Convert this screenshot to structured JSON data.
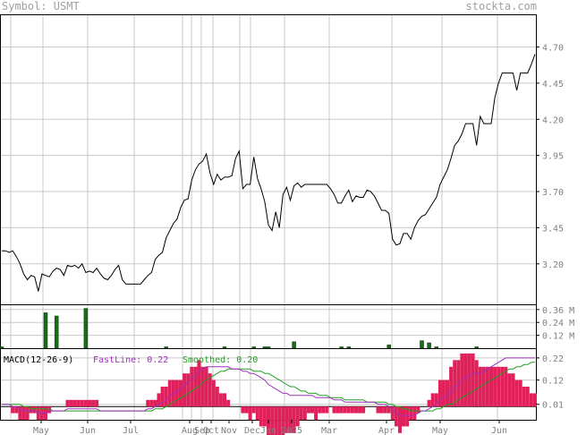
{
  "header": {
    "symbol_label": "Symbol: USMT",
    "site": "stockta.com"
  },
  "colors": {
    "price_line": "#000000",
    "volume_bar": "#1a6b1a",
    "hist_pos": "#e0205a",
    "hist_neg": "#e0205a",
    "fast_line": "#a030c0",
    "smoothed_line": "#20a020",
    "grid": "#c8c8c8"
  },
  "chart_data": [
    {
      "type": "line",
      "panel": "price",
      "y_ticks": [
        "4.70",
        "4.45",
        "4.20",
        "3.95",
        "3.70",
        "3.45",
        "3.20"
      ],
      "ylim": [
        2.92,
        4.92
      ],
      "x_ticks": [
        "May",
        "Jun",
        "Jul",
        "Aug",
        "Sep",
        "Oct",
        "Nov",
        "Dec",
        "Jan",
        "2025",
        "Mar",
        "Apr",
        "May",
        "Jun"
      ],
      "series": [
        {
          "values": [
            3.29,
            3.29,
            3.28,
            3.29,
            3.25,
            3.2,
            3.13,
            3.09,
            3.12,
            3.11,
            3.01,
            3.13,
            3.12,
            3.11,
            3.15,
            3.17,
            3.16,
            3.12,
            3.19,
            3.18,
            3.19,
            3.17,
            3.2,
            3.14,
            3.15,
            3.14,
            3.17,
            3.13,
            3.1,
            3.09,
            3.12,
            3.16,
            3.19,
            3.09,
            3.06,
            3.06,
            3.06,
            3.06,
            3.06,
            3.09,
            3.12,
            3.14,
            3.23,
            3.26,
            3.28,
            3.38,
            3.43,
            3.48,
            3.51,
            3.59,
            3.64,
            3.65,
            3.78,
            3.85,
            3.89,
            3.91,
            3.96,
            3.83,
            3.75,
            3.82,
            3.78,
            3.8,
            3.8,
            3.81,
            3.93,
            3.98,
            3.72,
            3.75,
            3.75,
            3.94,
            3.79,
            3.72,
            3.63,
            3.47,
            3.43,
            3.56,
            3.45,
            3.68,
            3.73,
            3.64,
            3.74,
            3.76,
            3.73,
            3.75,
            3.75,
            3.75,
            3.75,
            3.75,
            3.75,
            3.75,
            3.72,
            3.68,
            3.62,
            3.62,
            3.67,
            3.71,
            3.63,
            3.67,
            3.66,
            3.66,
            3.71,
            3.7,
            3.67,
            3.62,
            3.57,
            3.57,
            3.55,
            3.37,
            3.33,
            3.34,
            3.41,
            3.41,
            3.37,
            3.45,
            3.5,
            3.53,
            3.54,
            3.58,
            3.62,
            3.66,
            3.75,
            3.8,
            3.85,
            3.93,
            4.02,
            4.05,
            4.1,
            4.17,
            4.17,
            4.17,
            4.02,
            4.22,
            4.17,
            4.17,
            4.17,
            4.35,
            4.45,
            4.52,
            4.52,
            4.52,
            4.52,
            4.4,
            4.52,
            4.52,
            4.52,
            4.58,
            4.65
          ]
        }
      ]
    },
    {
      "type": "bar",
      "panel": "volume",
      "y_ticks": [
        "0.36 M",
        "0.24 M",
        "0.12 M"
      ],
      "ylim": [
        0,
        0.4
      ],
      "values": [
        0.01,
        0,
        0,
        0,
        0,
        0,
        0,
        0,
        0,
        0,
        0,
        0,
        0.33,
        0,
        0,
        0.3,
        0,
        0,
        0,
        0,
        0,
        0,
        0,
        0.37,
        0,
        0,
        0,
        0,
        0,
        0,
        0,
        0,
        0,
        0,
        0,
        0,
        0,
        0,
        0,
        0,
        0,
        0,
        0,
        0,
        0,
        0.01,
        0,
        0,
        0,
        0,
        0,
        0,
        0,
        0,
        0,
        0,
        0,
        0,
        0,
        0,
        0,
        0.01,
        0,
        0,
        0,
        0,
        0,
        0,
        0,
        0.01,
        0,
        0,
        0.01,
        0.01,
        0,
        0,
        0,
        0,
        0,
        0,
        0.06,
        0,
        0,
        0,
        0,
        0,
        0,
        0,
        0,
        0,
        0,
        0,
        0,
        0.01,
        0,
        0.01,
        0,
        0,
        0,
        0,
        0,
        0,
        0,
        0,
        0,
        0,
        0.03,
        0,
        0,
        0,
        0,
        0,
        0,
        0,
        0,
        0.07,
        0,
        0.05,
        0,
        0.01,
        0,
        0,
        0,
        0,
        0,
        0,
        0,
        0,
        0,
        0,
        0.01,
        0,
        0,
        0,
        0,
        0,
        0,
        0,
        0,
        0,
        0,
        0,
        0,
        0,
        0,
        0,
        0
      ]
    },
    {
      "type": "line",
      "panel": "macd",
      "label": "MACD(12-26-9)",
      "fast_label": "FastLine: 0.22",
      "smoothed_label": "Smoothed: 0.20",
      "y_ticks": [
        "0.22",
        "0.12",
        "0.01"
      ],
      "ylim": [
        -0.06,
        0.26
      ],
      "series": [
        {
          "name": "FastLine",
          "values": [
            0.01,
            0.01,
            0.01,
            0.0,
            0.0,
            -0.01,
            -0.02,
            -0.02,
            -0.02,
            -0.02,
            -0.03,
            -0.03,
            -0.03,
            -0.02,
            -0.02,
            -0.02,
            -0.02,
            -0.02,
            -0.01,
            -0.01,
            -0.01,
            -0.01,
            -0.01,
            -0.01,
            -0.01,
            -0.01,
            -0.01,
            -0.02,
            -0.02,
            -0.02,
            -0.02,
            -0.02,
            -0.02,
            -0.02,
            -0.02,
            -0.02,
            -0.02,
            -0.02,
            -0.02,
            -0.02,
            -0.01,
            -0.01,
            0.0,
            0.01,
            0.02,
            0.03,
            0.05,
            0.06,
            0.07,
            0.08,
            0.1,
            0.11,
            0.13,
            0.14,
            0.16,
            0.17,
            0.18,
            0.18,
            0.18,
            0.18,
            0.18,
            0.18,
            0.18,
            0.17,
            0.17,
            0.17,
            0.16,
            0.16,
            0.15,
            0.15,
            0.14,
            0.13,
            0.12,
            0.1,
            0.09,
            0.08,
            0.07,
            0.06,
            0.06,
            0.05,
            0.05,
            0.05,
            0.05,
            0.05,
            0.05,
            0.05,
            0.04,
            0.04,
            0.04,
            0.04,
            0.04,
            0.03,
            0.03,
            0.03,
            0.02,
            0.02,
            0.02,
            0.02,
            0.02,
            0.02,
            0.02,
            0.02,
            0.02,
            0.01,
            0.01,
            0.01,
            0.0,
            -0.01,
            -0.03,
            -0.04,
            -0.04,
            -0.04,
            -0.04,
            -0.04,
            -0.03,
            -0.02,
            -0.02,
            -0.01,
            0.0,
            0.01,
            0.03,
            0.04,
            0.05,
            0.07,
            0.09,
            0.1,
            0.12,
            0.13,
            0.14,
            0.15,
            0.15,
            0.15,
            0.16,
            0.17,
            0.18,
            0.19,
            0.2,
            0.21,
            0.22,
            0.22,
            0.22,
            0.22,
            0.22,
            0.22,
            0.22,
            0.22,
            0.22
          ]
        },
        {
          "name": "Smoothed",
          "values": [
            0.01,
            0.01,
            0.01,
            0.01,
            0.01,
            0.01,
            0.0,
            0.0,
            -0.01,
            -0.01,
            -0.01,
            -0.01,
            -0.01,
            -0.01,
            -0.02,
            -0.02,
            -0.02,
            -0.02,
            -0.02,
            -0.02,
            -0.02,
            -0.02,
            -0.02,
            -0.02,
            -0.02,
            -0.02,
            -0.02,
            -0.02,
            -0.02,
            -0.02,
            -0.02,
            -0.02,
            -0.02,
            -0.02,
            -0.02,
            -0.02,
            -0.02,
            -0.02,
            -0.02,
            -0.02,
            -0.02,
            -0.02,
            -0.01,
            -0.01,
            -0.01,
            0.0,
            0.01,
            0.02,
            0.03,
            0.04,
            0.05,
            0.06,
            0.07,
            0.08,
            0.09,
            0.11,
            0.12,
            0.13,
            0.14,
            0.15,
            0.16,
            0.16,
            0.17,
            0.17,
            0.17,
            0.17,
            0.17,
            0.17,
            0.17,
            0.16,
            0.16,
            0.16,
            0.15,
            0.15,
            0.14,
            0.13,
            0.12,
            0.11,
            0.1,
            0.09,
            0.09,
            0.08,
            0.07,
            0.07,
            0.06,
            0.06,
            0.06,
            0.05,
            0.05,
            0.05,
            0.04,
            0.04,
            0.04,
            0.04,
            0.03,
            0.03,
            0.03,
            0.03,
            0.03,
            0.03,
            0.02,
            0.02,
            0.02,
            0.02,
            0.02,
            0.02,
            0.01,
            0.01,
            0.0,
            0.0,
            -0.01,
            -0.01,
            -0.02,
            -0.02,
            -0.02,
            -0.02,
            -0.02,
            -0.02,
            -0.02,
            -0.01,
            -0.01,
            0.0,
            0.01,
            0.01,
            0.02,
            0.03,
            0.04,
            0.05,
            0.06,
            0.07,
            0.08,
            0.09,
            0.1,
            0.11,
            0.12,
            0.13,
            0.14,
            0.15,
            0.16,
            0.17,
            0.17,
            0.18,
            0.18,
            0.19,
            0.19,
            0.2,
            0.2
          ]
        }
      ]
    }
  ]
}
